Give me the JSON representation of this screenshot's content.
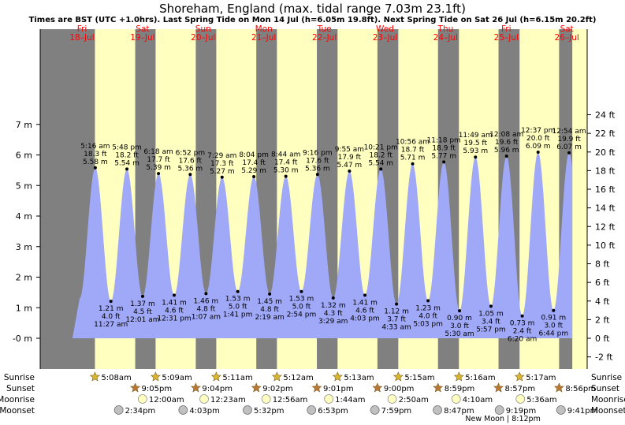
{
  "chart_data": {
    "type": "area",
    "title": "Shoreham, England (max. tidal range 7.03m 23.1ft)",
    "subtitle": "Times are BST (UTC +1.0hrs). Last Spring Tide on Mon 14 Jul (h=6.05m 19.8ft). Next Spring Tide on Sat 26 Jul (h=6.15m 20.2ft)",
    "ylabel_left_unit": "m",
    "ylabel_right_unit": "ft",
    "ylim_m": [
      -0.8,
      7.5
    ],
    "left_ticks": [
      "-0 m",
      "1 m",
      "2 m",
      "3 m",
      "4 m",
      "5 m",
      "6 m",
      "7 m"
    ],
    "left_tick_values": [
      0,
      1,
      2,
      3,
      4,
      5,
      6,
      7
    ],
    "right_tick_values": [
      -2,
      0,
      2,
      4,
      6,
      8,
      10,
      12,
      14,
      16,
      18,
      20,
      22,
      24
    ],
    "right_ticks": [
      "-2 ft",
      "0 ft",
      "2 ft",
      "4 ft",
      "6 ft",
      "8 ft",
      "10 ft",
      "12 ft",
      "14 ft",
      "16 ft",
      "18 ft",
      "20 ft",
      "22 ft",
      "24 ft"
    ],
    "days": [
      {
        "dow": "Fri",
        "date": "18–Jul"
      },
      {
        "dow": "Sat",
        "date": "19–Jul"
      },
      {
        "dow": "Sun",
        "date": "20–Jul"
      },
      {
        "dow": "Mon",
        "date": "21–Jul"
      },
      {
        "dow": "Tue",
        "date": "22–Jul"
      },
      {
        "dow": "Wed",
        "date": "23–Jul"
      },
      {
        "dow": "Thu",
        "date": "24–Jul"
      },
      {
        "dow": "Fri",
        "date": "25–Jul"
      },
      {
        "dow": "Sat",
        "date": "26–Jul"
      }
    ],
    "tides": [
      {
        "type": "high",
        "time": "5:16 am",
        "ft": "18.3 ft",
        "m": "5.58 m",
        "h": 5.58,
        "t": "2025-07-18T05:16"
      },
      {
        "type": "low",
        "time": "11:27 am",
        "ft": "4.0 ft",
        "m": "1.21 m",
        "h": 1.21,
        "t": "2025-07-18T11:27"
      },
      {
        "type": "high",
        "time": "5:48 pm",
        "ft": "18.2 ft",
        "m": "5.54 m",
        "h": 5.54,
        "t": "2025-07-18T17:48"
      },
      {
        "type": "low",
        "time": "12:01 am",
        "ft": "4.5 ft",
        "m": "1.37 m",
        "h": 1.37,
        "t": "2025-07-19T00:01"
      },
      {
        "type": "high",
        "time": "6:18 am",
        "ft": "17.7 ft",
        "m": "5.39 m",
        "h": 5.39,
        "t": "2025-07-19T06:18"
      },
      {
        "type": "low",
        "time": "12:31 pm",
        "ft": "4.6 ft",
        "m": "1.41 m",
        "h": 1.41,
        "t": "2025-07-19T12:31"
      },
      {
        "type": "high",
        "time": "6:52 pm",
        "ft": "17.6 ft",
        "m": "5.36 m",
        "h": 5.36,
        "t": "2025-07-19T18:52"
      },
      {
        "type": "low",
        "time": "1:07 am",
        "ft": "4.8 ft",
        "m": "1.46 m",
        "h": 1.46,
        "t": "2025-07-20T01:07"
      },
      {
        "type": "high",
        "time": "7:29 am",
        "ft": "17.3 ft",
        "m": "5.27 m",
        "h": 5.27,
        "t": "2025-07-20T07:29"
      },
      {
        "type": "low",
        "time": "1:41 pm",
        "ft": "5.0 ft",
        "m": "1.53 m",
        "h": 1.53,
        "t": "2025-07-20T13:41"
      },
      {
        "type": "high",
        "time": "8:04 pm",
        "ft": "17.4 ft",
        "m": "5.29 m",
        "h": 5.29,
        "t": "2025-07-20T20:04"
      },
      {
        "type": "low",
        "time": "2:19 am",
        "ft": "4.8 ft",
        "m": "1.45 m",
        "h": 1.45,
        "t": "2025-07-21T02:19"
      },
      {
        "type": "high",
        "time": "8:44 am",
        "ft": "17.4 ft",
        "m": "5.30 m",
        "h": 5.3,
        "t": "2025-07-21T08:44"
      },
      {
        "type": "low",
        "time": "2:54 pm",
        "ft": "5.0 ft",
        "m": "1.53 m",
        "h": 1.53,
        "t": "2025-07-21T14:54"
      },
      {
        "type": "high",
        "time": "9:16 pm",
        "ft": "17.6 ft",
        "m": "5.36 m",
        "h": 5.36,
        "t": "2025-07-21T21:16"
      },
      {
        "type": "low",
        "time": "3:29 am",
        "ft": "4.3 ft",
        "m": "1.32 m",
        "h": 1.32,
        "t": "2025-07-22T03:29"
      },
      {
        "type": "high",
        "time": "9:55 am",
        "ft": "17.9 ft",
        "m": "5.47 m",
        "h": 5.47,
        "t": "2025-07-22T09:55"
      },
      {
        "type": "low",
        "time": "4:03 pm",
        "ft": "4.6 ft",
        "m": "1.41 m",
        "h": 1.41,
        "t": "2025-07-22T16:03"
      },
      {
        "type": "high",
        "time": "10:21 pm",
        "ft": "18.2 ft",
        "m": "5.54 m",
        "h": 5.54,
        "t": "2025-07-22T22:21"
      },
      {
        "type": "low",
        "time": "4:33 am",
        "ft": "3.7 ft",
        "m": "1.12 m",
        "h": 1.12,
        "t": "2025-07-23T04:33"
      },
      {
        "type": "high",
        "time": "10:56 am",
        "ft": "18.7 ft",
        "m": "5.71 m",
        "h": 5.71,
        "t": "2025-07-23T10:56"
      },
      {
        "type": "low",
        "time": "5:03 pm",
        "ft": "4.0 ft",
        "m": "1.23 m",
        "h": 1.23,
        "t": "2025-07-23T17:03"
      },
      {
        "type": "high",
        "time": "11:18 pm",
        "ft": "18.9 ft",
        "m": "5.77 m",
        "h": 5.77,
        "t": "2025-07-23T23:18"
      },
      {
        "type": "low",
        "time": "5:30 am",
        "ft": "3.0 ft",
        "m": "0.90 m",
        "h": 0.9,
        "t": "2025-07-24T05:30"
      },
      {
        "type": "high",
        "time": "11:49 am",
        "ft": "19.5 ft",
        "m": "5.93 m",
        "h": 5.93,
        "t": "2025-07-24T11:49"
      },
      {
        "type": "low",
        "time": "5:57 pm",
        "ft": "3.4 ft",
        "m": "1.05 m",
        "h": 1.05,
        "t": "2025-07-24T17:57"
      },
      {
        "type": "high",
        "time": "12:08 am",
        "ft": "19.6 ft",
        "m": "5.96 m",
        "h": 5.96,
        "t": "2025-07-25T00:08"
      },
      {
        "type": "low",
        "time": "6:20 am",
        "ft": "2.4 ft",
        "m": "0.73 m",
        "h": 0.73,
        "t": "2025-07-25T06:20"
      },
      {
        "type": "high",
        "time": "12:37 pm",
        "ft": "20.0 ft",
        "m": "6.09 m",
        "h": 6.09,
        "t": "2025-07-25T12:37"
      },
      {
        "type": "low",
        "time": "6:44 pm",
        "ft": "3.0 ft",
        "m": "0.91 m",
        "h": 0.91,
        "t": "2025-07-25T18:44"
      },
      {
        "type": "high",
        "time": "12:54 am",
        "ft": "19.9 ft",
        "m": "6.07 m",
        "h": 6.07,
        "t": "2025-07-26T00:54"
      }
    ],
    "x_start": "2025-07-18T00:00",
    "x_end": "2025-07-27T00:00",
    "daylight": [
      [
        "2025-07-18T05:08",
        "2025-07-18T21:05"
      ],
      [
        "2025-07-19T05:09",
        "2025-07-19T21:04"
      ],
      [
        "2025-07-20T05:11",
        "2025-07-20T21:02"
      ],
      [
        "2025-07-21T05:12",
        "2025-07-21T21:01"
      ],
      [
        "2025-07-22T05:13",
        "2025-07-22T21:00"
      ],
      [
        "2025-07-23T05:15",
        "2025-07-23T20:59"
      ],
      [
        "2025-07-24T05:16",
        "2025-07-24T20:57"
      ],
      [
        "2025-07-25T05:17",
        "2025-07-25T20:56"
      ]
    ],
    "gray_from": "2025-07-17T20:14",
    "gray_to": "2025-07-26T02:10",
    "colors": {
      "night": "#808080",
      "day": "#ffffc0",
      "water": "#a0a8f8",
      "day_label": "#ff0000",
      "text": "#000000",
      "sun": "#d8b830",
      "sunset": "#b87838",
      "moon": "#ffffc0",
      "moonset": "#c0c0c0"
    }
  },
  "events": {
    "row_labels": {
      "sunrise": "Sunrise",
      "sunset": "Sunset",
      "moonrise": "Moonrise",
      "moonset": "Moonset"
    },
    "sunrise": [
      {
        "t": "2025-07-18T05:08",
        "label": "5:08am"
      },
      {
        "t": "2025-07-19T05:09",
        "label": "5:09am"
      },
      {
        "t": "2025-07-20T05:11",
        "label": "5:11am"
      },
      {
        "t": "2025-07-21T05:12",
        "label": "5:12am"
      },
      {
        "t": "2025-07-22T05:13",
        "label": "5:13am"
      },
      {
        "t": "2025-07-23T05:15",
        "label": "5:15am"
      },
      {
        "t": "2025-07-24T05:16",
        "label": "5:16am"
      },
      {
        "t": "2025-07-25T05:17",
        "label": "5:17am"
      }
    ],
    "sunset": [
      {
        "t": "2025-07-18T21:05",
        "label": "9:05pm"
      },
      {
        "t": "2025-07-19T21:04",
        "label": "9:04pm"
      },
      {
        "t": "2025-07-20T21:02",
        "label": "9:02pm"
      },
      {
        "t": "2025-07-21T21:01",
        "label": "9:01pm"
      },
      {
        "t": "2025-07-22T21:00",
        "label": "9:00pm"
      },
      {
        "t": "2025-07-23T20:59",
        "label": "8:59pm"
      },
      {
        "t": "2025-07-24T20:57",
        "label": "8:57pm"
      },
      {
        "t": "2025-07-25T20:56",
        "label": "8:56pm"
      }
    ],
    "moonrise": [
      {
        "t": "2025-07-19T00:00",
        "label": "12:00am"
      },
      {
        "t": "2025-07-20T00:23",
        "label": "12:23am"
      },
      {
        "t": "2025-07-21T00:56",
        "label": "12:56am"
      },
      {
        "t": "2025-07-22T01:44",
        "label": "1:44am"
      },
      {
        "t": "2025-07-23T02:50",
        "label": "2:50am"
      },
      {
        "t": "2025-07-24T04:10",
        "label": "4:10am"
      },
      {
        "t": "2025-07-25T05:36",
        "label": "5:36am"
      }
    ],
    "moonset": [
      {
        "t": "2025-07-18T14:34",
        "label": "2:34pm"
      },
      {
        "t": "2025-07-19T16:03",
        "label": "4:03pm"
      },
      {
        "t": "2025-07-20T17:32",
        "label": "5:32pm"
      },
      {
        "t": "2025-07-21T18:53",
        "label": "6:53pm"
      },
      {
        "t": "2025-07-22T19:59",
        "label": "7:59pm"
      },
      {
        "t": "2025-07-23T20:47",
        "label": "8:47pm"
      },
      {
        "t": "2025-07-24T21:19",
        "label": "9:19pm"
      },
      {
        "t": "2025-07-25T21:41",
        "label": "9:41pm"
      }
    ],
    "new_moon": {
      "t": "2025-07-24T20:12",
      "label": "New Moon | 8:12pm"
    }
  }
}
